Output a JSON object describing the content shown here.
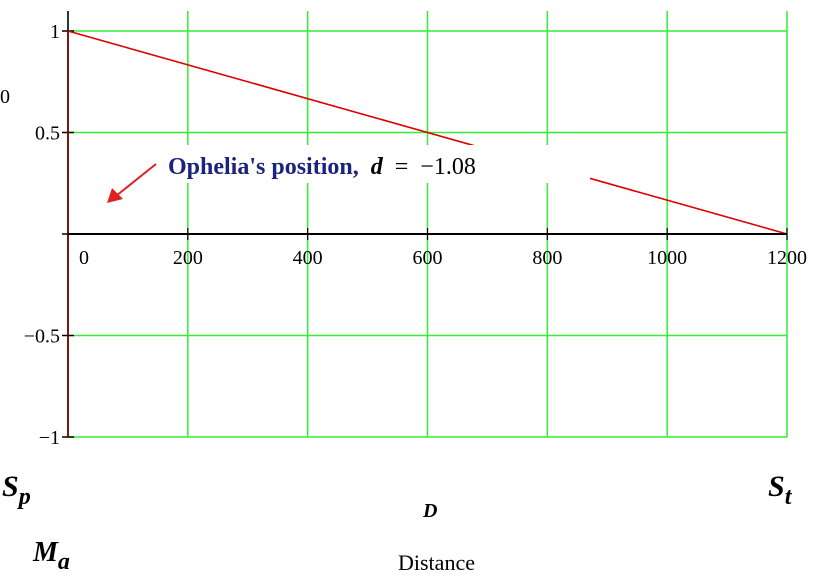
{
  "chart_data": {
    "type": "line",
    "xlim": [
      0,
      1200
    ],
    "ylim": [
      -1,
      1
    ],
    "x_ticks": [
      0,
      200,
      400,
      600,
      800,
      1000,
      1200
    ],
    "y_ticks": [
      1,
      0.5,
      0,
      -0.5,
      -1
    ],
    "x_tick_labels": [
      "0",
      "200",
      "400",
      "600",
      "800",
      "1000",
      "1200"
    ],
    "y_tick_labels": [
      "1",
      "0.5",
      "",
      "−0.5",
      "−1"
    ],
    "grid": true,
    "grid_color": "#33ee33",
    "series": [
      {
        "color": "#dd0000",
        "points": [
          [
            0,
            1
          ],
          [
            1200,
            0
          ]
        ]
      },
      {
        "color": "#880000",
        "points": [
          [
            0,
            -1
          ],
          [
            0,
            1
          ]
        ]
      },
      {
        "color": "#000000",
        "points": [
          [
            0,
            0
          ],
          [
            1200,
            0
          ]
        ]
      }
    ],
    "annotation": {
      "text": "Ophelia's position,",
      "var": "d",
      "eq": "=",
      "value": "−1.08",
      "arrow_color": "#dd2222"
    },
    "labels": {
      "sp_main": "S",
      "sp_sub": "p",
      "st_main": "S",
      "st_sub": "t",
      "ma_main": "M",
      "ma_sub": "a",
      "x_var": "D",
      "xlabel": "Distance",
      "left_edge": "0"
    }
  }
}
